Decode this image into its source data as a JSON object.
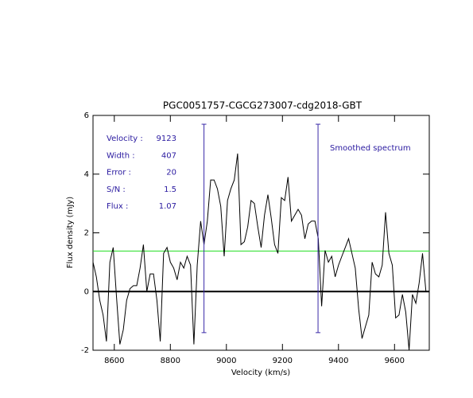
{
  "chart_data": {
    "type": "line",
    "title": "PGC0051757-CGCG273007-cdg2018-GBT",
    "x_label": "Velocity (km/s)",
    "y_label": "Flux density (mJy)",
    "annotation": "Smoothed spectrum",
    "stats": [
      {
        "label": "Velocity :",
        "value": 9123
      },
      {
        "label": "Width :",
        "value": 407
      },
      {
        "label": "Error :",
        "value": 20
      },
      {
        "label": "S/N :",
        "value": 1.5
      },
      {
        "label": "Flux :",
        "value": 1.07
      }
    ],
    "x": [
      8524,
      8536,
      8548,
      8560,
      8572,
      8584,
      8596,
      8608,
      8620,
      8632,
      8644,
      8656,
      8668,
      8680,
      8692,
      8704,
      8716,
      8728,
      8740,
      8752,
      8764,
      8776,
      8788,
      8800,
      8812,
      8824,
      8836,
      8848,
      8860,
      8872,
      8884,
      8896,
      8908,
      8920,
      8932,
      8944,
      8956,
      8968,
      8980,
      8992,
      9004,
      9016,
      9028,
      9040,
      9052,
      9064,
      9076,
      9088,
      9100,
      9112,
      9124,
      9136,
      9148,
      9160,
      9172,
      9184,
      9196,
      9208,
      9220,
      9232,
      9244,
      9256,
      9268,
      9280,
      9292,
      9304,
      9316,
      9328,
      9340,
      9352,
      9364,
      9376,
      9388,
      9400,
      9412,
      9424,
      9436,
      9448,
      9460,
      9472,
      9484,
      9496,
      9508,
      9520,
      9532,
      9544,
      9556,
      9568,
      9580,
      9592,
      9604,
      9616,
      9628,
      9640,
      9652,
      9664,
      9676,
      9688,
      9700,
      9712,
      9724
    ],
    "series": [
      {
        "color": "#000000",
        "values": [
          1.0,
          0.5,
          -0.3,
          -0.8,
          -1.7,
          1.0,
          1.5,
          -0.2,
          -1.8,
          -1.3,
          -0.3,
          0.1,
          0.2,
          0.2,
          0.8,
          1.6,
          0.0,
          0.6,
          0.6,
          -0.3,
          -1.7,
          1.3,
          1.5,
          1.0,
          0.8,
          0.4,
          1.0,
          0.8,
          1.2,
          0.9,
          -1.8,
          0.9,
          2.4,
          1.6,
          2.4,
          3.8,
          3.8,
          3.5,
          2.9,
          1.2,
          3.1,
          3.5,
          3.8,
          4.7,
          1.6,
          1.7,
          2.2,
          3.1,
          3.0,
          2.2,
          1.5,
          2.6,
          3.3,
          2.5,
          1.6,
          1.3,
          3.2,
          3.1,
          3.9,
          2.4,
          2.6,
          2.8,
          2.6,
          1.8,
          2.3,
          2.4,
          2.4,
          1.8,
          -0.5,
          1.4,
          1.0,
          1.2,
          0.5,
          0.9,
          1.2,
          1.5,
          1.8,
          1.3,
          0.8,
          -0.6,
          -1.6,
          -1.2,
          -0.8,
          1.0,
          0.6,
          0.5,
          0.9,
          2.7,
          1.3,
          0.9,
          -0.9,
          -0.8,
          -0.1,
          -0.7,
          -2.0,
          -0.1,
          -0.4,
          0.3,
          1.3,
          0.0,
          0.0
        ]
      }
    ],
    "markers": {
      "x": [
        8920,
        9327
      ],
      "y": [
        -1.4,
        5.7
      ],
      "color": "#3a2aa8"
    },
    "rms_line": {
      "value": 1.38,
      "color": "#22dd22"
    },
    "zero_line": 0,
    "text_color": "#2a1aa0",
    "xlim": [
      8524,
      9724
    ],
    "ylim": [
      -2,
      6
    ],
    "xticks": [
      8600,
      8800,
      9000,
      9200,
      9400,
      9600
    ],
    "yticks": [
      -2,
      0,
      2,
      4,
      6
    ]
  }
}
